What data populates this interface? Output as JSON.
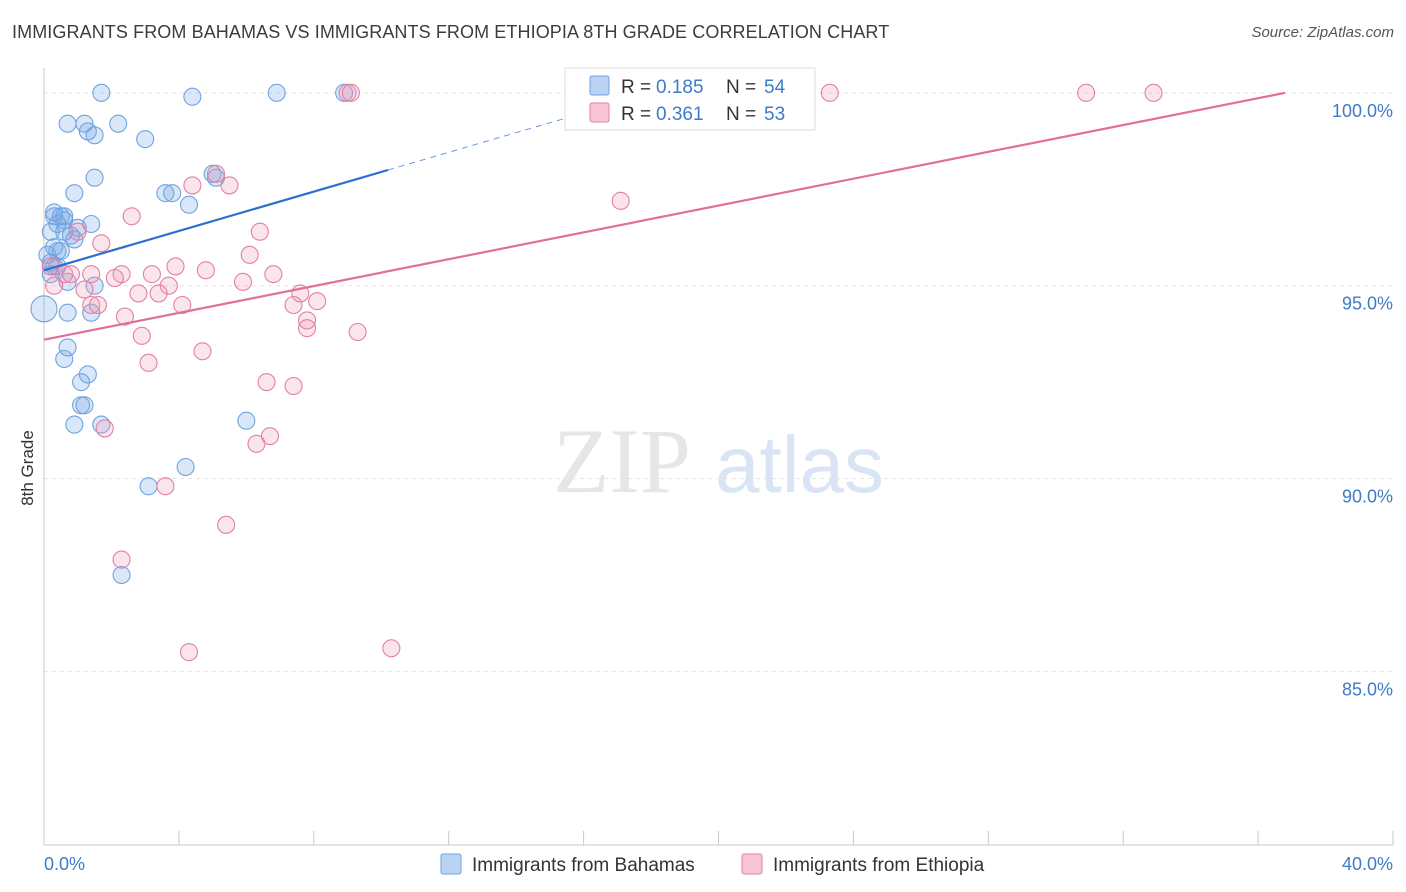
{
  "title": "IMMIGRANTS FROM BAHAMAS VS IMMIGRANTS FROM ETHIOPIA 8TH GRADE CORRELATION CHART",
  "source": "Source: ZipAtlas.com",
  "watermark": {
    "zip": "ZIP",
    "atlas": "atlas"
  },
  "chart_data": {
    "type": "scatter",
    "title": "IMMIGRANTS FROM BAHAMAS VS IMMIGRANTS FROM ETHIOPIA 8TH GRADE CORRELATION CHART",
    "xlabel": "",
    "ylabel": "8th Grade",
    "xlim": [
      0,
      40
    ],
    "ylim": [
      80.5,
      100.8
    ],
    "x_tick_labels": {
      "left": "0.0%",
      "right": "40.0%"
    },
    "y_ticks": [
      {
        "value": 100,
        "label": "100.0%"
      },
      {
        "value": 95,
        "label": "95.0%"
      },
      {
        "value": 90,
        "label": "90.0%"
      },
      {
        "value": 85,
        "label": "85.0%"
      }
    ],
    "legend": {
      "r_label": "R =",
      "n_label": "N =",
      "entries": [
        {
          "name": "Immigrants from Bahamas",
          "r": "0.185",
          "n": "54",
          "color": "#6fa3e0",
          "fill": "#b9d3f3"
        },
        {
          "name": "Immigrants from Ethiopia",
          "r": "0.361",
          "n": "53",
          "color": "#e57fa2",
          "fill": "#f8c6d6"
        }
      ]
    },
    "series": [
      {
        "name": "Immigrants from Bahamas",
        "color": "#6fa3e0",
        "trend": {
          "x0": 0,
          "y0": 95.4,
          "x1": 10.2,
          "y1": 98.0,
          "dash_to_x": 17.5,
          "line_color": "#2b6fd1"
        },
        "points": [
          [
            1.7,
            100
          ],
          [
            4.4,
            99.9
          ],
          [
            6.9,
            100
          ],
          [
            8.9,
            100
          ],
          [
            0.7,
            99.2
          ],
          [
            1.2,
            99.2
          ],
          [
            1.3,
            99.0
          ],
          [
            2.2,
            99.2
          ],
          [
            1.5,
            98.9
          ],
          [
            3.0,
            98.8
          ],
          [
            1.5,
            97.8
          ],
          [
            3.6,
            97.4
          ],
          [
            4.3,
            97.1
          ],
          [
            5.1,
            97.8
          ],
          [
            0.9,
            97.4
          ],
          [
            0.3,
            96.8
          ],
          [
            0.5,
            96.8
          ],
          [
            0.6,
            96.7
          ],
          [
            1.4,
            96.6
          ],
          [
            0.2,
            96.4
          ],
          [
            0.8,
            96.3
          ],
          [
            0.9,
            96.2
          ],
          [
            0.4,
            95.9
          ],
          [
            0.1,
            95.8
          ],
          [
            0.5,
            95.9
          ],
          [
            0.3,
            95.5
          ],
          [
            0.2,
            95.3
          ],
          [
            0.7,
            95.1
          ],
          [
            1.5,
            95.0
          ],
          [
            0.0,
            94.4
          ],
          [
            0.7,
            94.3
          ],
          [
            1.4,
            94.3
          ],
          [
            0.7,
            93.4
          ],
          [
            0.6,
            93.1
          ],
          [
            1.3,
            92.7
          ],
          [
            1.1,
            92.5
          ],
          [
            1.1,
            91.9
          ],
          [
            1.2,
            91.9
          ],
          [
            0.9,
            91.4
          ],
          [
            1.7,
            91.4
          ],
          [
            6.0,
            91.5
          ],
          [
            4.2,
            90.3
          ],
          [
            3.1,
            89.8
          ],
          [
            2.3,
            87.5
          ],
          [
            0.3,
            96.0
          ],
          [
            0.4,
            95.5
          ],
          [
            0.6,
            96.8
          ],
          [
            5.0,
            97.9
          ],
          [
            3.8,
            97.4
          ],
          [
            0.2,
            95.6
          ],
          [
            0.6,
            96.4
          ],
          [
            1.0,
            96.5
          ],
          [
            0.3,
            96.9
          ],
          [
            0.4,
            96.6
          ]
        ]
      },
      {
        "name": "Immigrants from Ethiopia",
        "color": "#e57fa2",
        "trend": {
          "x0": 0,
          "y0": 93.6,
          "x1": 36.8,
          "y1": 100.0,
          "line_color": "#e0709a"
        },
        "points": [
          [
            9.0,
            100
          ],
          [
            23.3,
            100
          ],
          [
            30.9,
            100
          ],
          [
            32.9,
            100
          ],
          [
            5.1,
            97.9
          ],
          [
            5.5,
            97.6
          ],
          [
            4.4,
            97.6
          ],
          [
            17.1,
            97.2
          ],
          [
            2.6,
            96.8
          ],
          [
            6.4,
            96.4
          ],
          [
            1.0,
            96.4
          ],
          [
            1.7,
            96.1
          ],
          [
            6.1,
            95.8
          ],
          [
            3.9,
            95.5
          ],
          [
            4.8,
            95.4
          ],
          [
            3.2,
            95.3
          ],
          [
            6.8,
            95.3
          ],
          [
            0.2,
            95.5
          ],
          [
            0.6,
            95.3
          ],
          [
            1.4,
            95.3
          ],
          [
            2.3,
            95.3
          ],
          [
            5.9,
            95.1
          ],
          [
            3.7,
            95.0
          ],
          [
            7.6,
            94.8
          ],
          [
            1.2,
            94.9
          ],
          [
            2.8,
            94.8
          ],
          [
            3.4,
            94.8
          ],
          [
            8.1,
            94.6
          ],
          [
            1.4,
            94.5
          ],
          [
            1.6,
            94.5
          ],
          [
            4.1,
            94.5
          ],
          [
            7.4,
            94.5
          ],
          [
            2.4,
            94.2
          ],
          [
            7.8,
            94.1
          ],
          [
            7.8,
            93.9
          ],
          [
            9.3,
            93.8
          ],
          [
            2.9,
            93.7
          ],
          [
            4.7,
            93.3
          ],
          [
            3.1,
            93.0
          ],
          [
            6.6,
            92.5
          ],
          [
            7.4,
            92.4
          ],
          [
            1.8,
            91.3
          ],
          [
            6.7,
            91.1
          ],
          [
            6.3,
            90.9
          ],
          [
            3.6,
            89.8
          ],
          [
            5.4,
            88.8
          ],
          [
            2.3,
            87.9
          ],
          [
            4.3,
            85.5
          ],
          [
            10.3,
            85.6
          ],
          [
            0.3,
            95.0
          ],
          [
            0.8,
            95.3
          ],
          [
            2.1,
            95.2
          ],
          [
            9.1,
            100
          ]
        ]
      }
    ]
  }
}
